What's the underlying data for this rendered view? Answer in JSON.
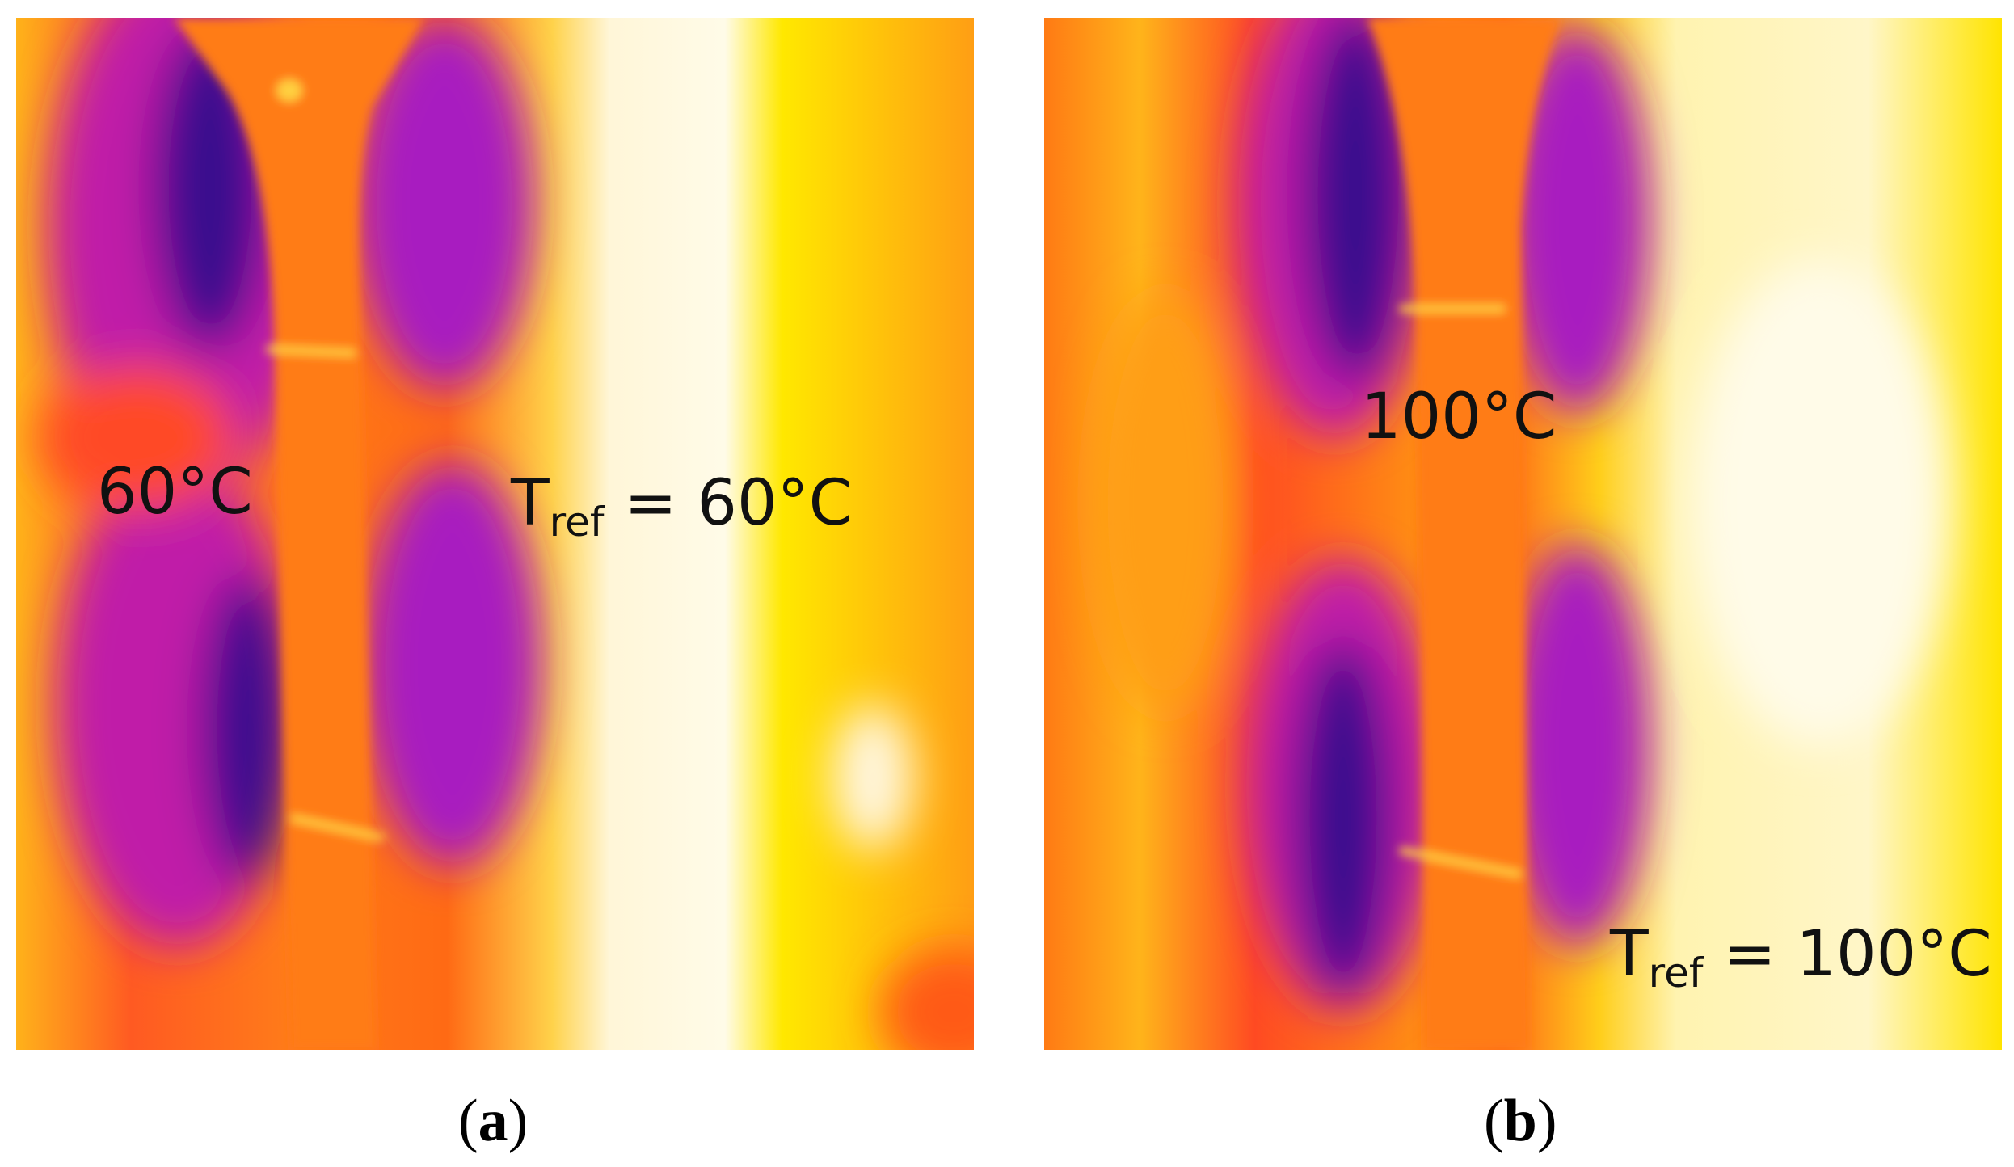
{
  "panels": [
    {
      "id": "a",
      "caption_letter": "a",
      "sample_temp": "60°C",
      "tref_symbol": "T",
      "tref_subscript": "ref",
      "tref_value": " = 60°C"
    },
    {
      "id": "b",
      "caption_letter": "b",
      "sample_temp": "100°C",
      "tref_symbol": "T",
      "tref_subscript": "ref",
      "tref_value": " = 100°C"
    }
  ],
  "palette": {
    "cold": "#3a0a8e",
    "cool": "#b01fb8",
    "mid": "#ff6a1a",
    "warm": "#ff8c1a",
    "hot": "#ffe000",
    "hottest": "#fffbe8"
  }
}
